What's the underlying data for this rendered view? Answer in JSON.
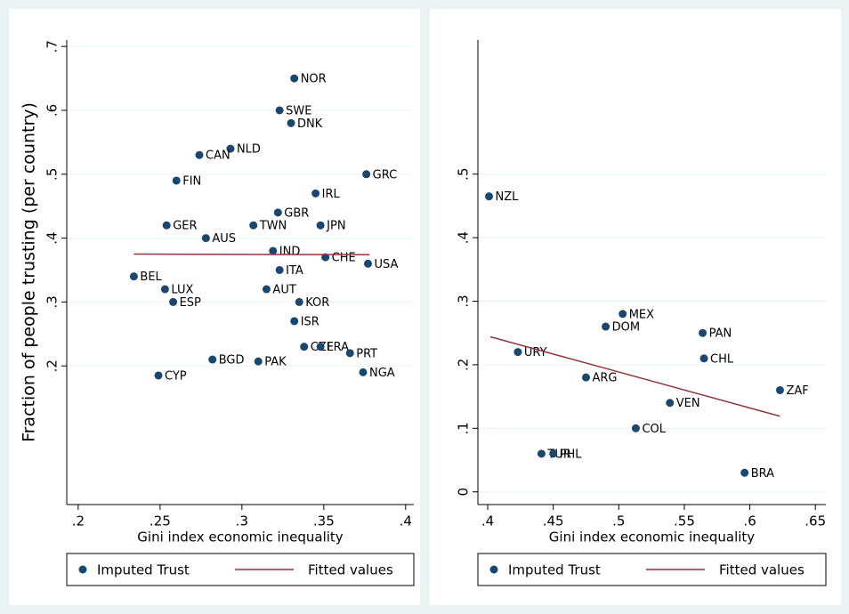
{
  "chart_data": [
    {
      "type": "scatter",
      "ylabel": "Fraction of people trusting (per country)",
      "xlabel": "Gini index economic inequality",
      "xlim": [
        0.193,
        0.405
      ],
      "ylim": [
        -0.017,
        0.71
      ],
      "grid": true,
      "xticks": [
        {
          "value": 0.2,
          "label": ".2"
        },
        {
          "value": 0.25,
          "label": ".25"
        },
        {
          "value": 0.3,
          "label": ".3"
        },
        {
          "value": 0.35,
          "label": ".35"
        },
        {
          "value": 0.4,
          "label": ".4"
        }
      ],
      "yticks": [
        {
          "value": 0.2,
          "label": ".2"
        },
        {
          "value": 0.3,
          "label": ".3"
        },
        {
          "value": 0.4,
          "label": ".4"
        },
        {
          "value": 0.5,
          "label": ".5"
        },
        {
          "value": 0.6,
          "label": ".6"
        },
        {
          "value": 0.7,
          "label": ".7"
        }
      ],
      "series": [
        {
          "name": "Imputed Trust",
          "color": "#1a476f",
          "labels": [
            "NOR",
            "SWE",
            "DNK",
            "NLD",
            "CAN",
            "GRC",
            "FIN",
            "IRL",
            "GBR",
            "GER",
            "TWN",
            "JPN",
            "AUS",
            "IND",
            "CHE",
            "USA",
            "ITA",
            "BEL",
            "LUX",
            "AUT",
            "KOR",
            "ESP",
            "ISR",
            "CZE",
            "FRA",
            "PRT",
            "BGD",
            "PAK",
            "NGA",
            "CYP"
          ],
          "x": [
            0.332,
            0.323,
            0.33,
            0.293,
            0.274,
            0.376,
            0.26,
            0.345,
            0.322,
            0.254,
            0.307,
            0.348,
            0.278,
            0.319,
            0.351,
            0.377,
            0.323,
            0.234,
            0.253,
            0.315,
            0.335,
            0.258,
            0.332,
            0.338,
            0.348,
            0.366,
            0.282,
            0.31,
            0.374,
            0.249
          ],
          "values": [
            0.65,
            0.6,
            0.58,
            0.54,
            0.53,
            0.5,
            0.49,
            0.47,
            0.44,
            0.42,
            0.42,
            0.42,
            0.4,
            0.38,
            0.37,
            0.36,
            0.35,
            0.34,
            0.32,
            0.32,
            0.3,
            0.3,
            0.27,
            0.23,
            0.23,
            0.22,
            0.21,
            0.207,
            0.19,
            0.185
          ]
        },
        {
          "name": "Fitted values",
          "color": "#90353b",
          "x": [
            0.234,
            0.378
          ],
          "values": [
            0.375,
            0.374
          ]
        }
      ]
    },
    {
      "type": "scatter",
      "xlabel": "Gini index economic inequality",
      "xlim": [
        0.3925,
        0.658
      ],
      "ylim": [
        -0.02,
        0.711
      ],
      "grid": true,
      "xticks": [
        {
          "value": 0.4,
          "label": ".4"
        },
        {
          "value": 0.45,
          "label": ".45"
        },
        {
          "value": 0.5,
          "label": ".5"
        },
        {
          "value": 0.55,
          "label": ".55"
        },
        {
          "value": 0.6,
          "label": ".6"
        },
        {
          "value": 0.65,
          "label": ".65"
        }
      ],
      "yticks": [
        0,
        {
          "value": 0.1,
          "label": ".1"
        },
        {
          "value": 0.2,
          "label": ".2"
        },
        {
          "value": 0.3,
          "label": ".3"
        },
        {
          "value": 0.4,
          "label": ".4"
        },
        {
          "value": 0.5,
          "label": ".5"
        }
      ],
      "series": [
        {
          "name": "Imputed Trust",
          "color": "#1a476f",
          "labels": [
            "NZL",
            "MEX",
            "DOM",
            "PAN",
            "URY",
            "CHL",
            "ARG",
            "ZAF",
            "VEN",
            "COL",
            "TUR",
            "PHL",
            "BRA"
          ],
          "x": [
            0.401,
            0.503,
            0.49,
            0.564,
            0.423,
            0.565,
            0.475,
            0.623,
            0.539,
            0.513,
            0.441,
            0.45,
            0.596
          ],
          "values": [
            0.465,
            0.28,
            0.26,
            0.25,
            0.22,
            0.21,
            0.18,
            0.16,
            0.14,
            0.1,
            0.06,
            0.06,
            0.03
          ]
        },
        {
          "name": "Fitted values",
          "color": "#90353b",
          "x": [
            0.402,
            0.623
          ],
          "values": [
            0.244,
            0.119
          ]
        }
      ]
    }
  ]
}
